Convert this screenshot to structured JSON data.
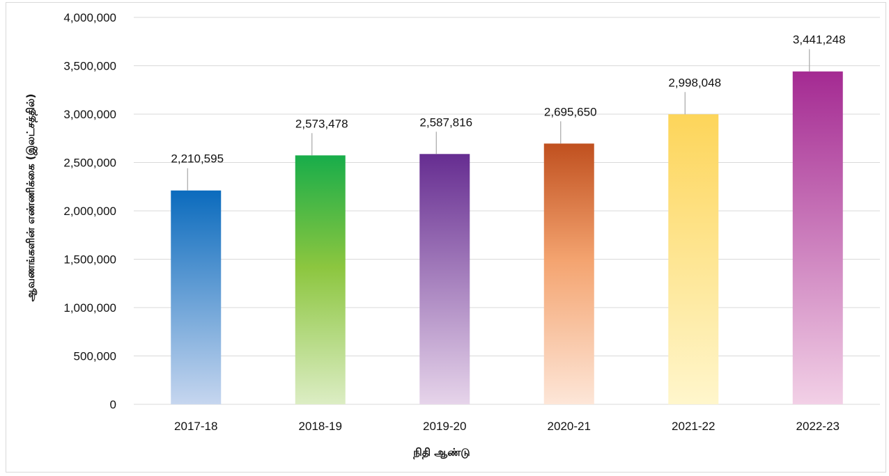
{
  "chart_data": {
    "type": "bar",
    "categories": [
      "2017-18",
      "2018-19",
      "2019-20",
      "2020-21",
      "2021-22",
      "2022-23"
    ],
    "values": [
      2210595,
      2573478,
      2587816,
      2695650,
      2998048,
      3441248
    ],
    "value_labels": [
      "2,210,595",
      "2,573,478",
      "2,587,816",
      "2,695,650",
      "2,998,048",
      "3,441,248"
    ],
    "xlabel": "நிதி ஆண்டு",
    "ylabel": "ஆவணங்களின் எண்ணிக்கை (இலட்சத்தில்)",
    "ylim": [
      0,
      4000000
    ],
    "yticks": [
      0,
      500000,
      1000000,
      1500000,
      2000000,
      2500000,
      3000000,
      3500000,
      4000000
    ],
    "ytick_labels": [
      "0",
      "500,000",
      "1,000,000",
      "1,500,000",
      "2,000,000",
      "2,500,000",
      "3,000,000",
      "3,500,000",
      "4,000,000"
    ],
    "grid": true,
    "legend": "none",
    "bar_colors": [
      {
        "top": "#0b6bbd",
        "bottom": "#c6d6ef"
      },
      {
        "top": "#18ad4a",
        "mid": "#8cc63f",
        "bottom": "#dcedc4"
      },
      {
        "top": "#662d91",
        "bottom": "#e6d4ea"
      },
      {
        "top": "#c0501f",
        "mid": "#f4a470",
        "bottom": "#fde6d8"
      },
      {
        "top": "#fdd55a",
        "bottom": "#fff6cc"
      },
      {
        "top": "#a42a92",
        "bottom": "#f2d0e6"
      }
    ]
  }
}
